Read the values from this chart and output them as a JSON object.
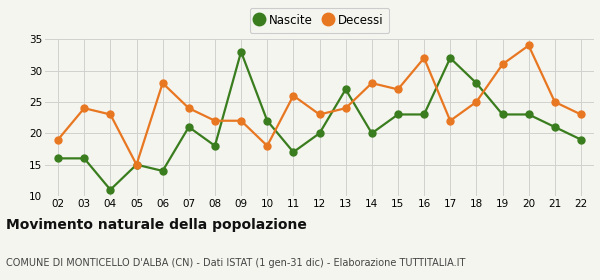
{
  "years": [
    "02",
    "03",
    "04",
    "05",
    "06",
    "07",
    "08",
    "09",
    "10",
    "11",
    "12",
    "13",
    "14",
    "15",
    "16",
    "17",
    "18",
    "19",
    "20",
    "21",
    "22"
  ],
  "nascite": [
    16,
    16,
    11,
    15,
    14,
    21,
    18,
    33,
    22,
    17,
    20,
    27,
    20,
    23,
    23,
    32,
    28,
    23,
    23,
    21,
    19
  ],
  "decessi": [
    19,
    24,
    23,
    15,
    28,
    24,
    22,
    22,
    18,
    26,
    23,
    24,
    28,
    27,
    32,
    22,
    25,
    31,
    34,
    25,
    23
  ],
  "nascite_color": "#3a7d1e",
  "decessi_color": "#e87722",
  "bg_color": "#f5f5f0",
  "grid_color": "#d0d0d0",
  "ylim": [
    10,
    35
  ],
  "yticks": [
    10,
    15,
    20,
    25,
    30,
    35
  ],
  "title": "Movimento naturale della popolazione",
  "subtitle": "COMUNE DI MONTICELLO D'ALBA (CN) - Dati ISTAT (1 gen-31 dic) - Elaborazione TUTTITALIA.IT",
  "legend_nascite": "Nascite",
  "legend_decessi": "Decessi",
  "marker_size": 5,
  "line_width": 1.6,
  "title_fontsize": 10,
  "subtitle_fontsize": 7.0
}
